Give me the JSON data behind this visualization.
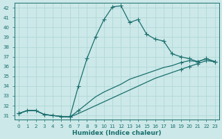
{
  "xlabel": "Humidex (Indice chaleur)",
  "bg_color": "#cce8e8",
  "grid_color": "#b0d8d8",
  "line_color": "#1a6e6e",
  "xlim_min": -0.5,
  "xlim_max": 23.5,
  "ylim_min": 30.6,
  "ylim_max": 42.5,
  "xticks": [
    0,
    1,
    2,
    3,
    4,
    5,
    6,
    7,
    8,
    9,
    10,
    11,
    12,
    13,
    14,
    15,
    16,
    17,
    18,
    19,
    20,
    21,
    22,
    23
  ],
  "yticks": [
    31,
    32,
    33,
    34,
    35,
    36,
    37,
    38,
    39,
    40,
    41,
    42
  ],
  "series1_x": [
    0,
    1,
    2,
    3,
    4,
    5,
    6,
    7,
    8,
    9,
    10,
    11,
    12,
    13,
    14,
    15,
    16,
    17,
    18,
    19,
    20,
    21,
    22,
    23
  ],
  "series1_y": [
    31.2,
    31.5,
    31.5,
    31.1,
    31.0,
    30.9,
    30.85,
    34.0,
    36.8,
    39.0,
    40.8,
    42.1,
    42.2,
    40.5,
    40.8,
    39.3,
    38.8,
    38.6,
    37.3,
    37.0,
    36.8,
    36.5,
    36.8,
    36.5
  ],
  "series2_x": [
    0,
    1,
    2,
    3,
    4,
    5,
    6,
    7,
    8,
    9,
    10,
    11,
    12,
    13,
    14,
    15,
    16,
    17,
    18,
    19,
    20,
    21,
    22,
    23
  ],
  "series2_y": [
    31.2,
    31.5,
    31.5,
    31.1,
    31.0,
    30.9,
    30.85,
    31.2,
    31.6,
    32.0,
    32.4,
    32.8,
    33.2,
    33.6,
    34.0,
    34.4,
    34.8,
    35.1,
    35.4,
    35.7,
    36.0,
    36.3,
    36.6,
    36.5
  ],
  "series3_x": [
    0,
    1,
    2,
    3,
    4,
    5,
    6,
    7,
    8,
    9,
    10,
    11,
    12,
    13,
    14,
    15,
    16,
    17,
    18,
    19,
    20,
    21,
    22,
    23
  ],
  "series3_y": [
    31.2,
    31.5,
    31.5,
    31.1,
    31.0,
    30.9,
    30.85,
    31.5,
    32.2,
    32.9,
    33.4,
    33.8,
    34.2,
    34.7,
    35.0,
    35.3,
    35.6,
    35.9,
    36.1,
    36.4,
    36.6,
    36.5,
    36.8,
    36.5
  ],
  "marker_x1": [
    0,
    1,
    2,
    3,
    4,
    5,
    6,
    7,
    8,
    9,
    10,
    11,
    12,
    13,
    14,
    15,
    16,
    17,
    18,
    19,
    20,
    21,
    22,
    23
  ],
  "marker_y1": [
    31.2,
    31.5,
    31.5,
    31.1,
    31.0,
    30.9,
    30.85,
    34.0,
    36.8,
    39.0,
    40.8,
    42.1,
    42.2,
    40.5,
    40.8,
    39.3,
    38.8,
    38.6,
    37.3,
    37.0,
    36.8,
    36.5,
    36.8,
    36.5
  ],
  "marker_x2": [
    0,
    6,
    19,
    20,
    21,
    22,
    23
  ],
  "marker_y2": [
    31.2,
    30.85,
    35.7,
    36.0,
    36.3,
    36.6,
    36.5
  ],
  "marker_x3": [
    0,
    6,
    7,
    19,
    20,
    21,
    22,
    23
  ],
  "marker_y3": [
    31.2,
    30.85,
    31.5,
    36.4,
    36.6,
    36.5,
    36.8,
    36.5
  ]
}
